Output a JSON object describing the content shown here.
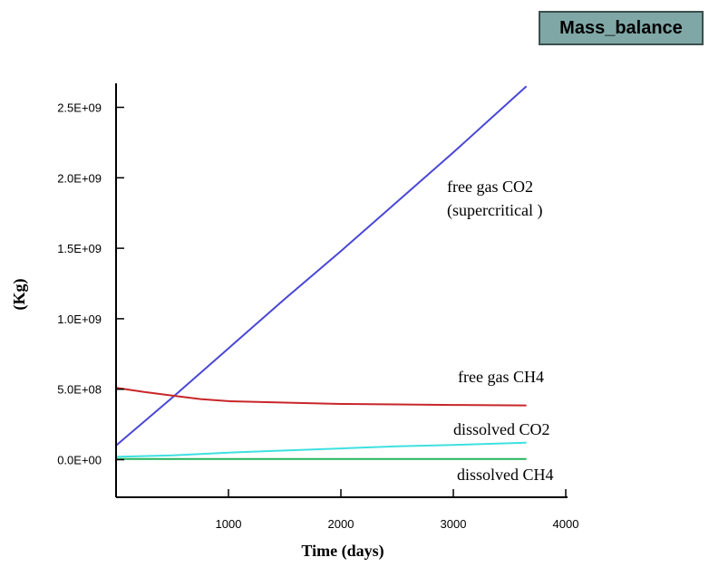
{
  "header": {
    "badge_label": "Mass_balance"
  },
  "chart_data": {
    "type": "line",
    "xlabel": "Time (days)",
    "ylabel": "(Kg)",
    "xlim": [
      0,
      4000
    ],
    "ylim": [
      -250000000,
      2750000000
    ],
    "x_ticks": [
      1000,
      2000,
      3000,
      4000
    ],
    "x_tick_labels": [
      "1000",
      "2000",
      "3000",
      "4000"
    ],
    "y_ticks": [
      0,
      500000000,
      1000000000,
      1500000000,
      2000000000,
      2500000000
    ],
    "y_tick_labels": [
      "0.0E+00",
      "5.0E+08",
      "1.0E+09",
      "1.5E+09",
      "2.0E+09",
      "2.5E+09"
    ],
    "grid": false,
    "series": [
      {
        "name": "free gas CO2 (supercritical )",
        "label_lines": [
          "free gas CO2",
          "(supercritical )"
        ],
        "color": "#4a47d6",
        "x": [
          0,
          500,
          1000,
          1500,
          2000,
          2500,
          3000,
          3650
        ],
        "y": [
          100000000,
          440000000,
          790000000,
          1140000000,
          1480000000,
          1830000000,
          2180000000,
          2650000000
        ]
      },
      {
        "name": "free gas CH4",
        "label_lines": [
          "free gas CH4"
        ],
        "color": "#c8262a",
        "x": [
          0,
          250,
          500,
          750,
          1000,
          1500,
          2000,
          2500,
          3000,
          3650
        ],
        "y": [
          510000000,
          480000000,
          455000000,
          430000000,
          415000000,
          405000000,
          395000000,
          392000000,
          388000000,
          385000000
        ]
      },
      {
        "name": "dissolved CO2",
        "label_lines": [
          "dissolved CO2"
        ],
        "color": "#3fe0e0",
        "x": [
          0,
          500,
          1000,
          1500,
          2000,
          2500,
          3000,
          3650
        ],
        "y": [
          20000000,
          30000000,
          50000000,
          65000000,
          80000000,
          95000000,
          105000000,
          120000000
        ]
      },
      {
        "name": "dissolved CH4",
        "label_lines": [
          "dissolved CH4"
        ],
        "color": "#22b35a",
        "x": [
          0,
          500,
          1000,
          1500,
          2000,
          2500,
          3000,
          3650
        ],
        "y": [
          5000000,
          5000000,
          5000000,
          5000000,
          5000000,
          5000000,
          5000000,
          5000000
        ]
      }
    ]
  }
}
